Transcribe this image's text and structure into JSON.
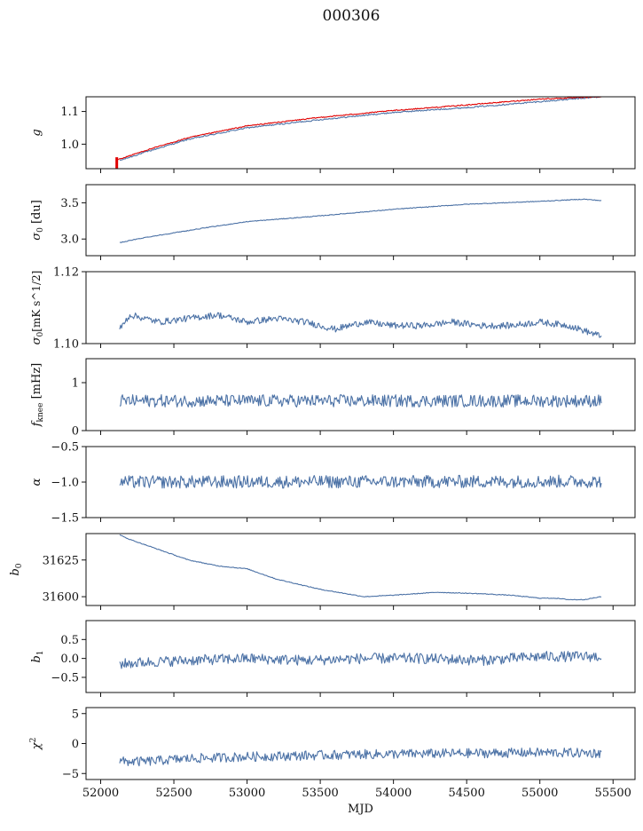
{
  "figure_title": "000306",
  "colors": {
    "series": "#4c72a6",
    "overlay": "#e00000",
    "axis": "#111111"
  },
  "chart_data": [
    {
      "type": "line",
      "id": "g",
      "ylabel_main": "g",
      "ylabel_sub": "",
      "xlim": [
        51900,
        55650
      ],
      "ylim": [
        0.925,
        1.145
      ],
      "yticks": [
        1.0,
        1.1
      ],
      "yticklabels": [
        "1.0",
        "1.1"
      ],
      "xticks": [
        52000,
        52500,
        53000,
        53500,
        54000,
        54500,
        55000,
        55500
      ],
      "xticklabels": [],
      "series": [
        {
          "name": "g",
          "color": "#4c72a6",
          "x": [
            52130,
            52300,
            52600,
            53000,
            53500,
            54000,
            54500,
            55000,
            55420
          ],
          "y": [
            0.95,
            0.975,
            1.015,
            1.05,
            1.075,
            1.097,
            1.112,
            1.13,
            1.145
          ],
          "noise": 0.002,
          "width": 1.1
        },
        {
          "name": "g-red",
          "color": "#e00000",
          "x": [
            52120,
            52300,
            52600,
            53000,
            53500,
            54000,
            54500,
            55000,
            55420
          ],
          "y": [
            0.953,
            0.98,
            1.02,
            1.056,
            1.082,
            1.103,
            1.12,
            1.138,
            1.145
          ],
          "noise": 0.0015,
          "width": 3,
          "spike": {
            "x": 52110,
            "y_from": 0.925,
            "y_to": 0.96
          }
        }
      ]
    },
    {
      "type": "line",
      "id": "sigma0",
      "ylabel_main": "σ",
      "ylabel_sub": "0",
      "ylabel_suffix": " [du]",
      "xlim": [
        51900,
        55650
      ],
      "ylim": [
        2.77,
        3.75
      ],
      "yticks": [
        3.0,
        3.5
      ],
      "yticklabels": [
        "3.0",
        "3.5"
      ],
      "xticks": [
        52000,
        52500,
        53000,
        53500,
        54000,
        54500,
        55000,
        55500
      ],
      "xticklabels": [],
      "series": [
        {
          "name": "sigma0",
          "color": "#4c72a6",
          "x": [
            52130,
            52300,
            52700,
            53000,
            53500,
            54000,
            54500,
            55000,
            55300,
            55420
          ],
          "y": [
            2.95,
            3.02,
            3.15,
            3.24,
            3.32,
            3.41,
            3.48,
            3.52,
            3.55,
            3.53
          ],
          "noise": 0.005,
          "width": 1.1
        }
      ]
    },
    {
      "type": "line",
      "id": "sigma0-mk",
      "ylabel_main": "σ",
      "ylabel_sub": "0",
      "ylabel_suffix": "[mK s^1/2]",
      "xlim": [
        51900,
        55650
      ],
      "ylim": [
        1.1,
        1.12
      ],
      "yticks": [
        1.1,
        1.12
      ],
      "yticklabels": [
        "1.10",
        "1.12"
      ],
      "xticks": [
        52000,
        52500,
        53000,
        53500,
        54000,
        54500,
        55000,
        55500
      ],
      "xticklabels": [],
      "series": [
        {
          "name": "sigma0-mk",
          "color": "#4c72a6",
          "x": [
            52130,
            52200,
            52400,
            52600,
            52800,
            53000,
            53200,
            53400,
            53600,
            53800,
            54000,
            54200,
            54400,
            54600,
            54800,
            55000,
            55200,
            55420
          ],
          "y": [
            1.104,
            1.108,
            1.106,
            1.107,
            1.108,
            1.106,
            1.107,
            1.106,
            1.104,
            1.106,
            1.105,
            1.105,
            1.106,
            1.105,
            1.105,
            1.106,
            1.105,
            1.102
          ],
          "noise": 0.0009,
          "width": 1.1
        }
      ]
    },
    {
      "type": "line",
      "id": "fknee",
      "ylabel_main": "f",
      "ylabel_sub": "knee",
      "ylabel_suffix": " [mHz]",
      "xlim": [
        51900,
        55650
      ],
      "ylim": [
        0,
        1.5
      ],
      "yticks": [
        0,
        1
      ],
      "yticklabels": [
        "0",
        "1"
      ],
      "xticks": [
        52000,
        52500,
        53000,
        53500,
        54000,
        54500,
        55000,
        55500
      ],
      "xticklabels": [],
      "series": [
        {
          "name": "fknee",
          "color": "#4c72a6",
          "x": [
            52130,
            55420
          ],
          "y": [
            0.62,
            0.62
          ],
          "noise": 0.13,
          "width": 1.1
        }
      ]
    },
    {
      "type": "line",
      "id": "alpha",
      "ylabel_main": "α",
      "ylabel_sub": "",
      "xlim": [
        51900,
        55650
      ],
      "ylim": [
        -1.5,
        -0.5
      ],
      "yticks": [
        -1.5,
        -1.0,
        -0.5
      ],
      "yticklabels": [
        "−1.5",
        "−1.0",
        "−0.5"
      ],
      "xticks": [
        52000,
        52500,
        53000,
        53500,
        54000,
        54500,
        55000,
        55500
      ],
      "xticklabels": [],
      "series": [
        {
          "name": "alpha",
          "color": "#4c72a6",
          "x": [
            52130,
            55420
          ],
          "y": [
            -1.0,
            -0.99
          ],
          "noise": 0.09,
          "width": 1.1
        }
      ]
    },
    {
      "type": "line",
      "id": "b0",
      "ylabel_main": "b",
      "ylabel_sub": "0",
      "xlim": [
        51900,
        55650
      ],
      "ylim": [
        31594,
        31643
      ],
      "yticks": [
        31600,
        31625
      ],
      "yticklabels": [
        "31600",
        "31625"
      ],
      "xticks": [
        52000,
        52500,
        53000,
        53500,
        54000,
        54500,
        55000,
        55500
      ],
      "xticklabels": [],
      "series": [
        {
          "name": "b0",
          "color": "#4c72a6",
          "x": [
            52130,
            52200,
            52400,
            52600,
            52800,
            53000,
            53200,
            53500,
            53800,
            54000,
            54300,
            54600,
            54800,
            55000,
            55100,
            55200,
            55300,
            55420
          ],
          "y": [
            31642,
            31639,
            31632,
            31625,
            31621,
            31619,
            31612,
            31605,
            31600,
            31601,
            31603,
            31602,
            31601,
            31599,
            31599,
            31598,
            31598,
            31600
          ],
          "noise": 0.25,
          "width": 1.1
        }
      ]
    },
    {
      "type": "line",
      "id": "b1",
      "ylabel_main": "b",
      "ylabel_sub": "1",
      "xlim": [
        51900,
        55650
      ],
      "ylim": [
        -0.9,
        1.0
      ],
      "yticks": [
        -0.5,
        0.0,
        0.5
      ],
      "yticklabels": [
        "−0.5",
        "0.0",
        "0.5"
      ],
      "xticks": [
        52000,
        52500,
        53000,
        53500,
        54000,
        54500,
        55000,
        55500
      ],
      "xticklabels": [],
      "series": [
        {
          "name": "b1",
          "color": "#4c72a6",
          "x": [
            52130,
            52300,
            52600,
            53000,
            53400,
            53800,
            54200,
            54600,
            55000,
            55420
          ],
          "y": [
            -0.15,
            -0.1,
            -0.05,
            0.0,
            -0.05,
            0.0,
            0.0,
            -0.05,
            0.05,
            0.05
          ],
          "noise": 0.14,
          "width": 1.1
        }
      ]
    },
    {
      "type": "line",
      "id": "chi2",
      "ylabel_main": "χ",
      "ylabel_sup": "2",
      "xlim": [
        51900,
        55650
      ],
      "ylim": [
        -6,
        6
      ],
      "yticks": [
        -5,
        0,
        5
      ],
      "yticklabels": [
        "−5",
        "0",
        "5"
      ],
      "xticks": [
        52000,
        52500,
        53000,
        53500,
        54000,
        54500,
        55000,
        55500
      ],
      "xticklabels": [
        "52000",
        "52500",
        "53000",
        "53500",
        "54000",
        "54500",
        "55000",
        "55500"
      ],
      "xlabel": "MJD",
      "series": [
        {
          "name": "chi2",
          "color": "#4c72a6",
          "x": [
            52130,
            52300,
            52600,
            53000,
            53400,
            53800,
            54200,
            54600,
            55000,
            55420
          ],
          "y": [
            -3.0,
            -3.0,
            -2.5,
            -2.2,
            -2.0,
            -1.8,
            -1.7,
            -1.6,
            -1.5,
            -1.6
          ],
          "noise": 0.8,
          "width": 1.1
        }
      ]
    }
  ]
}
